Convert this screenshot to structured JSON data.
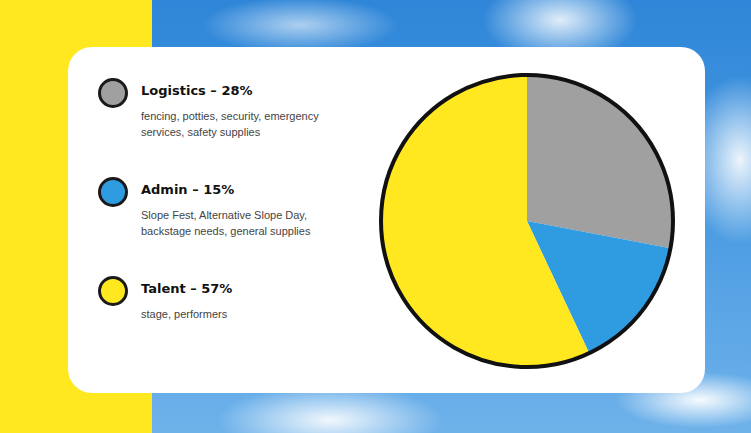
{
  "chart_data": {
    "type": "pie",
    "categories": [
      "Logistics – 28%",
      "Admin – 15%",
      "Talent – 57%"
    ],
    "values": [
      28,
      15,
      57
    ],
    "descriptions": [
      "fencing, potties, security, emergency services, safety supplies",
      "Slope Fest, Alternative Slope Day, backstage needs, general supplies",
      "stage, performers"
    ],
    "colors": [
      "#a0a0a0",
      "#2f9be0",
      "#ffe81f"
    ],
    "legend": "left"
  }
}
